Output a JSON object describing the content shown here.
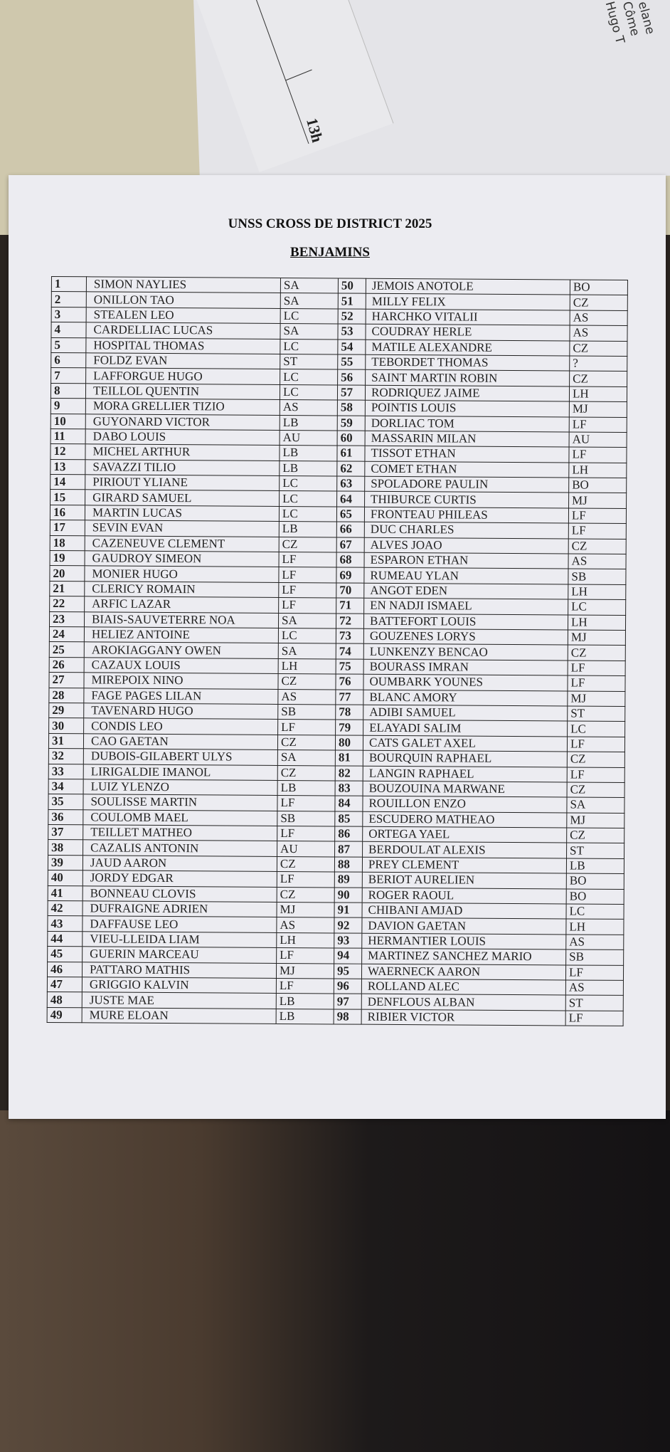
{
  "document": {
    "title": "UNSS CROSS DE DISTRICT 2025",
    "subtitle": "BENJAMINS"
  },
  "background_sheet": {
    "time_note": "13h",
    "handwritten": [
      "elane",
      "Côme",
      "Hugo T"
    ]
  },
  "left_rows": [
    [
      "1",
      "SIMON NAYLIES",
      "SA"
    ],
    [
      "2",
      "ONILLON TAO",
      "SA"
    ],
    [
      "3",
      "STEALEN LEO",
      "LC"
    ],
    [
      "4",
      "CARDELLIAC LUCAS",
      "SA"
    ],
    [
      "5",
      "HOSPITAL THOMAS",
      "LC"
    ],
    [
      "6",
      "FOLDZ EVAN",
      "ST"
    ],
    [
      "7",
      "LAFFORGUE HUGO",
      "LC"
    ],
    [
      "8",
      "TEILLOL QUENTIN",
      "LC"
    ],
    [
      "9",
      "MORA GRELLIER TIZIO",
      "AS"
    ],
    [
      "10",
      "GUYONARD VICTOR",
      "LB"
    ],
    [
      "11",
      "DABO LOUIS",
      "AU"
    ],
    [
      "12",
      "MICHEL ARTHUR",
      "LB"
    ],
    [
      "13",
      "SAVAZZI TILIO",
      "LB"
    ],
    [
      "14",
      "PIRIOUT YLIANE",
      "LC"
    ],
    [
      "15",
      "GIRARD SAMUEL",
      "LC"
    ],
    [
      "16",
      "MARTIN LUCAS",
      "LC"
    ],
    [
      "17",
      "SEVIN EVAN",
      "LB"
    ],
    [
      "18",
      "CAZENEUVE CLEMENT",
      "CZ"
    ],
    [
      "19",
      "GAUDROY SIMEON",
      "LF"
    ],
    [
      "20",
      "MONIER HUGO",
      "LF"
    ],
    [
      "21",
      "CLERICY ROMAIN",
      "LF"
    ],
    [
      "22",
      "ARFIC LAZAR",
      "LF"
    ],
    [
      "23",
      "BIAIS-SAUVETERRE NOA",
      "SA"
    ],
    [
      "24",
      "HELIEZ ANTOINE",
      "LC"
    ],
    [
      "25",
      "AROKIAGGANY OWEN",
      "SA"
    ],
    [
      "26",
      "CAZAUX LOUIS",
      "LH"
    ],
    [
      "27",
      "MIREPOIX NINO",
      "CZ"
    ],
    [
      "28",
      "FAGE PAGES LILAN",
      "AS"
    ],
    [
      "29",
      "TAVENARD HUGO",
      "SB"
    ],
    [
      "30",
      "CONDIS LEO",
      "LF"
    ],
    [
      "31",
      "CAO GAETAN",
      "CZ"
    ],
    [
      "32",
      "DUBOIS-GILABERT ULYS",
      "SA"
    ],
    [
      "33",
      "LIRIGALDIE IMANOL",
      "CZ"
    ],
    [
      "34",
      "LUIZ YLENZO",
      "LB"
    ],
    [
      "35",
      "SOULISSE MARTIN",
      "LF"
    ],
    [
      "36",
      "COULOMB MAEL",
      "SB"
    ],
    [
      "37",
      "TEILLET MATHEO",
      "LF"
    ],
    [
      "38",
      "CAZALIS ANTONIN",
      "AU"
    ],
    [
      "39",
      "JAUD AARON",
      "CZ"
    ],
    [
      "40",
      "JORDY EDGAR",
      "LF"
    ],
    [
      "41",
      "BONNEAU CLOVIS",
      "CZ"
    ],
    [
      "42",
      "DUFRAIGNE ADRIEN",
      "MJ"
    ],
    [
      "43",
      "DAFFAUSE LEO",
      "AS"
    ],
    [
      "44",
      "VIEU-LLEIDA LIAM",
      "LH"
    ],
    [
      "45",
      "GUERIN MARCEAU",
      "LF"
    ],
    [
      "46",
      "PATTARO MATHIS",
      "MJ"
    ],
    [
      "47",
      "GRIGGIO KALVIN",
      "LF"
    ],
    [
      "48",
      "JUSTE MAE",
      "LB"
    ],
    [
      "49",
      "MURE ELOAN",
      "LB"
    ]
  ],
  "right_rows": [
    [
      "50",
      "JEMOIS ANOTOLE",
      "BO"
    ],
    [
      "51",
      "MILLY FELIX",
      "CZ"
    ],
    [
      "52",
      "HARCHKO VITALII",
      "AS"
    ],
    [
      "53",
      "COUDRAY HERLE",
      "AS"
    ],
    [
      "54",
      "MATILE ALEXANDRE",
      "CZ"
    ],
    [
      "55",
      "TEBORDET THOMAS",
      "?"
    ],
    [
      "56",
      "SAINT MARTIN ROBIN",
      "CZ"
    ],
    [
      "57",
      "RODRIQUEZ JAIME",
      "LH"
    ],
    [
      "58",
      "POINTIS LOUIS",
      "MJ"
    ],
    [
      "59",
      "DORLIAC TOM",
      "LF"
    ],
    [
      "60",
      "MASSARIN MILAN",
      "AU"
    ],
    [
      "61",
      "TISSOT ETHAN",
      "LF"
    ],
    [
      "62",
      "COMET ETHAN",
      "LH"
    ],
    [
      "63",
      "SPOLADORE PAULIN",
      "BO"
    ],
    [
      "64",
      "THIBURCE CURTIS",
      "MJ"
    ],
    [
      "65",
      "FRONTEAU PHILEAS",
      "LF"
    ],
    [
      "66",
      "DUC CHARLES",
      "LF"
    ],
    [
      "67",
      "ALVES JOAO",
      "CZ"
    ],
    [
      "68",
      "ESPARON ETHAN",
      "AS"
    ],
    [
      "69",
      "RUMEAU YLAN",
      "SB"
    ],
    [
      "70",
      "ANGOT EDEN",
      "LH"
    ],
    [
      "71",
      "EN NADJI ISMAEL",
      "LC"
    ],
    [
      "72",
      "BATTEFORT LOUIS",
      "LH"
    ],
    [
      "73",
      "GOUZENES LORYS",
      "MJ"
    ],
    [
      "74",
      "LUNKENZY BENCAO",
      "CZ"
    ],
    [
      "75",
      "BOURASS IMRAN",
      "LF"
    ],
    [
      "76",
      "OUMBARK YOUNES",
      "LF"
    ],
    [
      "77",
      "BLANC AMORY",
      "MJ"
    ],
    [
      "78",
      "ADIBI SAMUEL",
      "ST"
    ],
    [
      "79",
      "ELAYADI SALIM",
      "LC"
    ],
    [
      "80",
      "CATS GALET AXEL",
      "LF"
    ],
    [
      "81",
      "BOURQUIN RAPHAEL",
      "CZ"
    ],
    [
      "82",
      "LANGIN RAPHAEL",
      "LF"
    ],
    [
      "83",
      "BOUZOUINA MARWANE",
      "CZ"
    ],
    [
      "84",
      "ROUILLON ENZO",
      "SA"
    ],
    [
      "85",
      "ESCUDERO MATHEAO",
      "MJ"
    ],
    [
      "86",
      "ORTEGA YAEL",
      "CZ"
    ],
    [
      "87",
      "BERDOULAT ALEXIS",
      "ST"
    ],
    [
      "88",
      "PREY CLEMENT",
      "LB"
    ],
    [
      "89",
      "BERIOT AURELIEN",
      "BO"
    ],
    [
      "90",
      "ROGER RAOUL",
      "BO"
    ],
    [
      "91",
      "CHIBANI AMJAD",
      "LC"
    ],
    [
      "92",
      "DAVION GAETAN",
      "LH"
    ],
    [
      "93",
      "HERMANTIER LOUIS",
      "AS"
    ],
    [
      "94",
      "MARTINEZ SANCHEZ MARIO",
      "SB"
    ],
    [
      "95",
      "WAERNECK AARON",
      "LF"
    ],
    [
      "96",
      "ROLLAND ALEC",
      "AS"
    ],
    [
      "97",
      "DENFLOUS ALBAN",
      "ST"
    ],
    [
      "98",
      "RIBIER VICTOR",
      "LF"
    ]
  ]
}
